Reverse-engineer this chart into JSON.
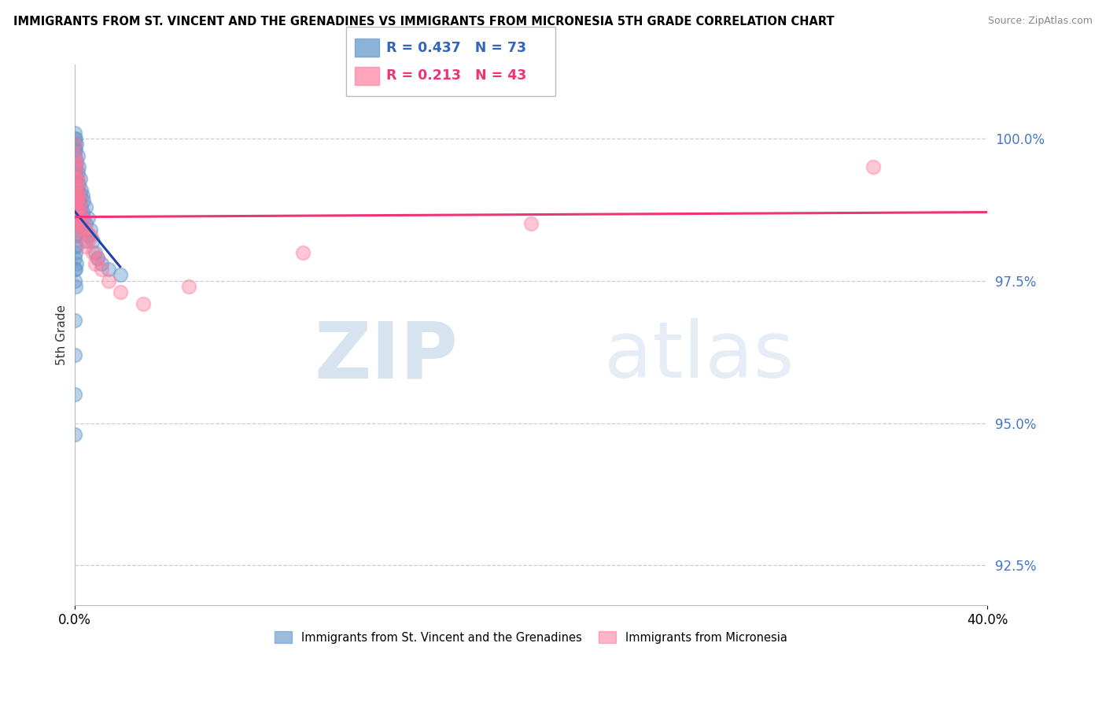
{
  "title": "IMMIGRANTS FROM ST. VINCENT AND THE GRENADINES VS IMMIGRANTS FROM MICRONESIA 5TH GRADE CORRELATION CHART",
  "source": "Source: ZipAtlas.com",
  "ylabel": "5th Grade",
  "legend_label_blue": "Immigrants from St. Vincent and the Grenadines",
  "legend_label_pink": "Immigrants from Micronesia",
  "R_blue": 0.437,
  "N_blue": 73,
  "R_pink": 0.213,
  "N_pink": 43,
  "color_blue": "#6699CC",
  "color_pink": "#FF7799",
  "line_blue": "#2244AA",
  "line_pink": "#EE3377",
  "xlim": [
    0.0,
    40.0
  ],
  "ylim": [
    91.8,
    101.3
  ],
  "yticks": [
    92.5,
    95.0,
    97.5,
    100.0
  ],
  "blue_x": [
    0.0,
    0.0,
    0.0,
    0.0,
    0.0,
    0.0,
    0.0,
    0.0,
    0.0,
    0.0,
    0.0,
    0.0,
    0.0,
    0.0,
    0.0,
    0.0,
    0.05,
    0.05,
    0.05,
    0.05,
    0.05,
    0.05,
    0.05,
    0.05,
    0.05,
    0.05,
    0.1,
    0.1,
    0.1,
    0.1,
    0.1,
    0.1,
    0.1,
    0.1,
    0.15,
    0.15,
    0.15,
    0.15,
    0.15,
    0.2,
    0.2,
    0.2,
    0.2,
    0.25,
    0.25,
    0.25,
    0.3,
    0.3,
    0.3,
    0.35,
    0.35,
    0.4,
    0.4,
    0.5,
    0.5,
    0.5,
    0.6,
    0.6,
    0.7,
    0.8,
    0.9,
    1.0,
    1.2,
    1.5,
    2.0,
    0.0,
    0.0,
    0.0,
    0.0,
    0.05,
    0.1,
    0.15,
    0.2
  ],
  "blue_y": [
    100.1,
    100.0,
    99.9,
    99.8,
    99.7,
    99.5,
    99.3,
    99.1,
    98.9,
    98.7,
    98.5,
    98.3,
    98.1,
    97.9,
    97.7,
    97.5,
    100.0,
    99.8,
    99.5,
    99.2,
    98.9,
    98.6,
    98.3,
    98.0,
    97.7,
    97.4,
    99.9,
    99.6,
    99.3,
    99.0,
    98.7,
    98.4,
    98.1,
    97.8,
    99.7,
    99.4,
    99.1,
    98.8,
    98.5,
    99.5,
    99.2,
    98.9,
    98.6,
    99.3,
    99.0,
    98.7,
    99.1,
    98.8,
    98.5,
    99.0,
    98.7,
    98.9,
    98.6,
    98.8,
    98.5,
    98.2,
    98.6,
    98.3,
    98.4,
    98.2,
    98.0,
    97.9,
    97.8,
    97.7,
    97.6,
    96.8,
    96.2,
    95.5,
    94.8,
    99.4,
    99.0,
    98.8,
    98.5
  ],
  "pink_x": [
    0.0,
    0.0,
    0.0,
    0.0,
    0.0,
    0.0,
    0.0,
    0.0,
    0.05,
    0.05,
    0.05,
    0.05,
    0.1,
    0.1,
    0.1,
    0.1,
    0.1,
    0.15,
    0.15,
    0.15,
    0.2,
    0.2,
    0.2,
    0.25,
    0.25,
    0.3,
    0.3,
    0.4,
    0.5,
    0.5,
    0.6,
    0.7,
    0.8,
    0.9,
    1.0,
    1.2,
    1.5,
    2.0,
    3.0,
    5.0,
    10.0,
    20.0,
    35.0
  ],
  "pink_y": [
    99.9,
    99.7,
    99.5,
    99.3,
    99.1,
    98.9,
    98.7,
    98.5,
    99.6,
    99.3,
    99.0,
    98.7,
    99.5,
    99.2,
    98.9,
    98.6,
    98.3,
    99.3,
    99.0,
    98.7,
    99.1,
    98.8,
    98.5,
    98.9,
    98.6,
    98.7,
    98.4,
    98.5,
    98.4,
    98.1,
    98.2,
    98.3,
    98.0,
    97.8,
    97.9,
    97.7,
    97.5,
    97.3,
    97.1,
    97.4,
    98.0,
    98.5,
    99.5
  ],
  "watermark_zip": "ZIP",
  "watermark_atlas": "atlas",
  "background_color": "#FFFFFF",
  "grid_color": "#CCCCCC"
}
